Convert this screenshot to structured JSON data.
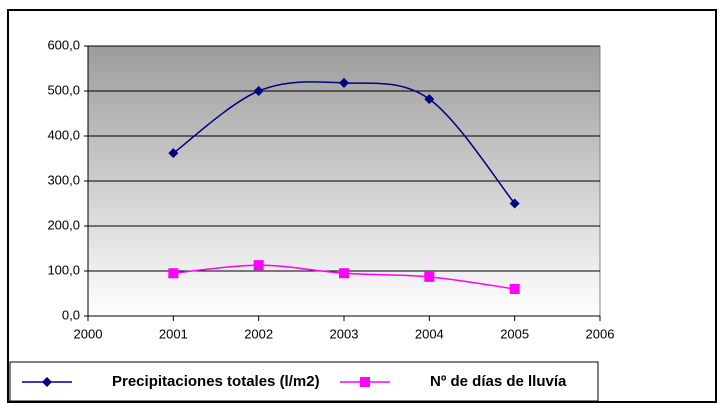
{
  "chart_data": {
    "type": "line",
    "x": [
      2001,
      2002,
      2003,
      2004,
      2005
    ],
    "series": [
      {
        "name": "Precipitaciones totales (l/m2)",
        "color": "#000080",
        "marker": "diamond",
        "values": [
          362,
          500,
          518,
          482,
          250
        ]
      },
      {
        "name": "Nº de días de lluvía",
        "color": "#ff00ff",
        "marker": "square",
        "values": [
          95,
          113,
          95,
          87,
          60
        ]
      }
    ],
    "xlim": [
      2000,
      2006
    ],
    "xticks": [
      2000,
      2001,
      2002,
      2003,
      2004,
      2005,
      2006
    ],
    "ylim": [
      0,
      600
    ],
    "yticks": [
      {
        "value": 0,
        "label": "0,0"
      },
      {
        "value": 100,
        "label": "100,0"
      },
      {
        "value": 200,
        "label": "200,0"
      },
      {
        "value": 300,
        "label": "300,0"
      },
      {
        "value": 400,
        "label": "400,0"
      },
      {
        "value": 500,
        "label": "500,0"
      },
      {
        "value": 600,
        "label": "600,0"
      }
    ],
    "grid": true,
    "smooth": true,
    "legend": "bottom"
  }
}
